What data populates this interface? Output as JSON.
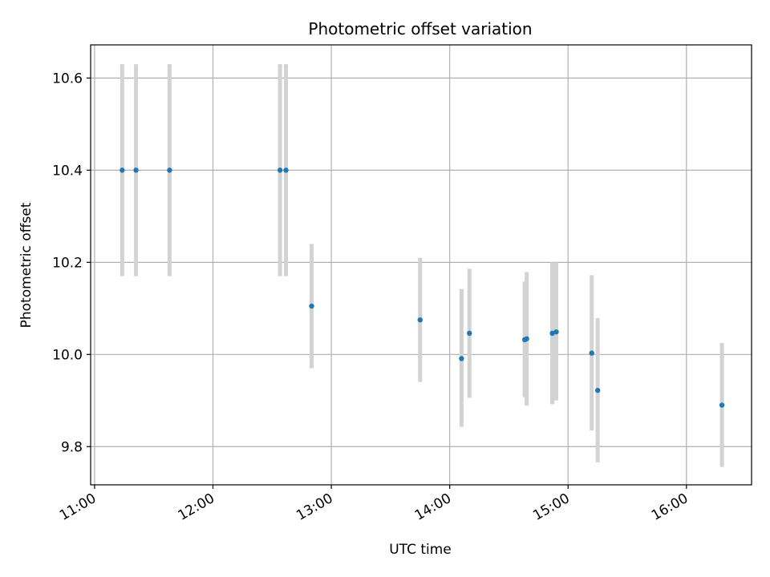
{
  "chart_data": {
    "type": "scatter",
    "title": "Photometric offset variation",
    "xlabel": "UTC time",
    "ylabel": "Photometric offset",
    "x_ticks": [
      "11:00",
      "12:00",
      "13:00",
      "14:00",
      "15:00",
      "16:00"
    ],
    "y_ticks": [
      "9.8",
      "10.0",
      "10.2",
      "10.4",
      "10.6"
    ],
    "xlim": [
      "10:58",
      "16:33"
    ],
    "ylim": [
      9.717,
      10.672
    ],
    "grid": true,
    "legend": false,
    "series": [
      {
        "marker_color": "#1f77b4",
        "errorbar_color": "#d3d3d3",
        "points": [
          {
            "time": "11:14",
            "y": 10.4,
            "low": 10.17,
            "high": 10.63
          },
          {
            "time": "11:21",
            "y": 10.4,
            "low": 10.17,
            "high": 10.63
          },
          {
            "time": "11:38",
            "y": 10.4,
            "low": 10.17,
            "high": 10.63
          },
          {
            "time": "12:34",
            "y": 10.4,
            "low": 10.17,
            "high": 10.63
          },
          {
            "time": "12:37",
            "y": 10.4,
            "low": 10.17,
            "high": 10.63
          },
          {
            "time": "12:50",
            "y": 10.105,
            "low": 9.97,
            "high": 10.24
          },
          {
            "time": "13:45",
            "y": 10.075,
            "low": 9.94,
            "high": 10.21
          },
          {
            "time": "14:06",
            "y": 9.991,
            "low": 9.843,
            "high": 10.142
          },
          {
            "time": "14:10",
            "y": 10.046,
            "low": 9.906,
            "high": 10.186
          },
          {
            "time": "14:38",
            "y": 10.032,
            "low": 9.907,
            "high": 10.158
          },
          {
            "time": "14:39",
            "y": 10.034,
            "low": 9.889,
            "high": 10.179
          },
          {
            "time": "14:52",
            "y": 10.046,
            "low": 9.892,
            "high": 10.2
          },
          {
            "time": "14:54",
            "y": 10.049,
            "low": 9.9,
            "high": 10.2
          },
          {
            "time": "15:12",
            "y": 10.003,
            "low": 9.835,
            "high": 10.172
          },
          {
            "time": "15:15",
            "y": 9.922,
            "low": 9.766,
            "high": 10.079
          },
          {
            "time": "16:18",
            "y": 9.89,
            "low": 9.756,
            "high": 10.025
          }
        ]
      }
    ]
  }
}
